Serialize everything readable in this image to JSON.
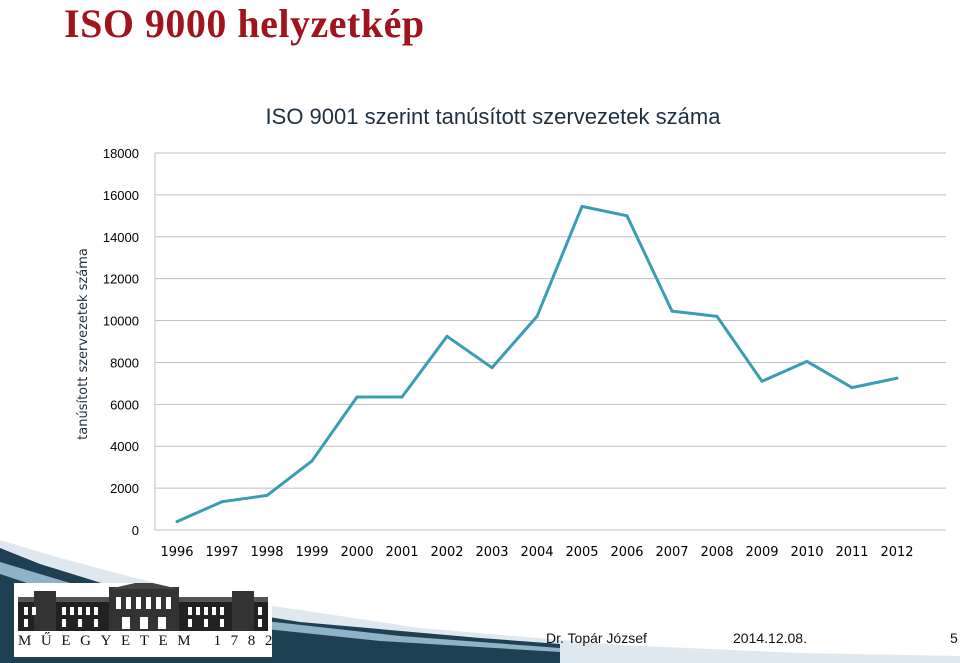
{
  "slide": {
    "title": "ISO 9000 helyzetkép"
  },
  "footer": {
    "logo_text": "MŰEGYETEM 1782",
    "author": "Dr. Topár József",
    "date": "2014.12.08.",
    "page": "5"
  },
  "colors": {
    "title": "#a0141e",
    "series_line": "#3a9db4",
    "gridline": "#bfbfbf",
    "swoosh_dark": "#1f3f52",
    "swoosh_light": "#cfdde6"
  },
  "chart_data": {
    "type": "line",
    "title": "ISO 9001 szerint tanúsított szervezetek száma",
    "xlabel": "",
    "ylabel": "tanúsított szervezetek száma",
    "categories": [
      "1996",
      "1997",
      "1998",
      "1999",
      "2000",
      "2001",
      "2002",
      "2003",
      "2004",
      "2005",
      "2006",
      "2007",
      "2008",
      "2009",
      "2010",
      "2011",
      "2012"
    ],
    "series": [
      {
        "values": [
          400,
          1350,
          1650,
          3300,
          6350,
          6350,
          9250,
          7750,
          10200,
          15450,
          15000,
          10450,
          10200,
          7100,
          8050,
          6800,
          7250
        ]
      }
    ],
    "ylim": [
      0,
      18000
    ],
    "yticks": [
      "0",
      "2000",
      "4000",
      "6000",
      "8000",
      "10000",
      "12000",
      "14000",
      "16000",
      "18000"
    ],
    "grid": true,
    "legend": "none"
  }
}
